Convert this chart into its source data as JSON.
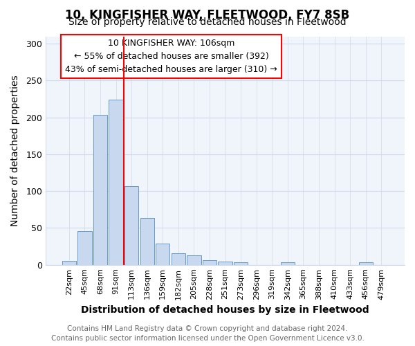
{
  "title": "10, KINGFISHER WAY, FLEETWOOD, FY7 8SB",
  "subtitle": "Size of property relative to detached houses in Fleetwood",
  "xlabel": "Distribution of detached houses by size in Fleetwood",
  "ylabel": "Number of detached properties",
  "bar_labels": [
    "22sqm",
    "45sqm",
    "68sqm",
    "91sqm",
    "113sqm",
    "136sqm",
    "159sqm",
    "182sqm",
    "205sqm",
    "228sqm",
    "251sqm",
    "273sqm",
    "296sqm",
    "319sqm",
    "342sqm",
    "365sqm",
    "388sqm",
    "410sqm",
    "433sqm",
    "456sqm",
    "479sqm"
  ],
  "bar_values": [
    5,
    46,
    203,
    224,
    107,
    64,
    29,
    16,
    13,
    6,
    4,
    3,
    0,
    0,
    3,
    0,
    0,
    0,
    0,
    3,
    0
  ],
  "bar_color": "#c8d8ee",
  "bar_edge_color": "#6699cc",
  "vline_x": 3.5,
  "vline_color": "red",
  "ylim_max": 310,
  "yticks": [
    0,
    50,
    100,
    150,
    200,
    250,
    300
  ],
  "annotation_text": "10 KINGFISHER WAY: 106sqm\n← 55% of detached houses are smaller (392)\n43% of semi-detached houses are larger (310) →",
  "annotation_box_color": "white",
  "annotation_box_edge": "red",
  "footer_line1": "Contains HM Land Registry data © Crown copyright and database right 2024.",
  "footer_line2": "Contains public sector information licensed under the Open Government Licence v3.0.",
  "title_fontsize": 12,
  "subtitle_fontsize": 10,
  "axis_label_fontsize": 10,
  "tick_fontsize": 8,
  "annotation_fontsize": 9,
  "footer_fontsize": 7.5,
  "background_color": "#ffffff",
  "plot_bg_color": "#f0f4fb",
  "grid_color": "#d0daea"
}
